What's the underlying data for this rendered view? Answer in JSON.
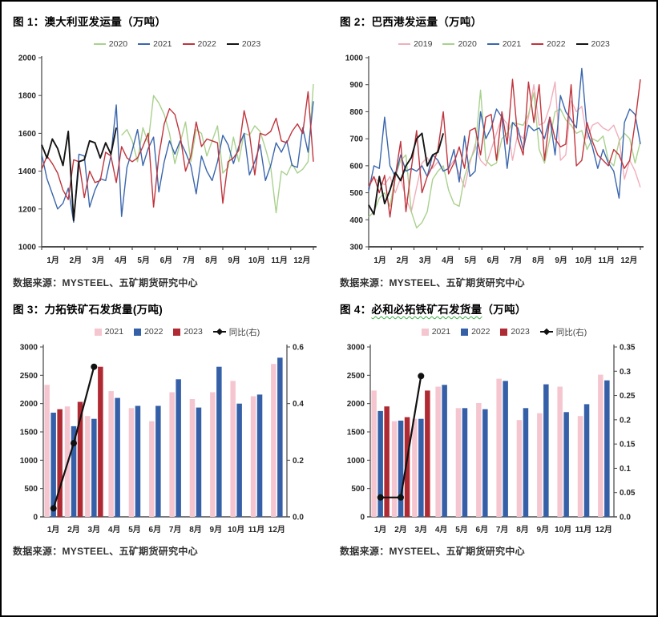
{
  "page": {
    "background": "#ffffff",
    "frame_border": "#000000"
  },
  "source_label": "数据来源：MYSTEEL、五矿期货研究中心",
  "palette": {
    "pink_line": "#f0aeba",
    "green_line": "#a9d18e",
    "blue_line": "#3a66ad",
    "red_line": "#c0343c",
    "black_line": "#141414",
    "pink_bar": "#f5c6d0",
    "blue_bar": "#3560a8",
    "dark_red_bar": "#b02a33",
    "yoy_line": "#111111"
  },
  "chart_data": [
    {
      "type": "line",
      "title": "图 1：澳大利亚发运量（万吨）",
      "source": "数据来源：MYSTEEL、五矿期货研究中心",
      "ylim": [
        1000,
        2000
      ],
      "yticks": [
        1000,
        1200,
        1400,
        1600,
        1800,
        2000
      ],
      "x_months": [
        "1月",
        "2月",
        "3月",
        "4月",
        "5月",
        "6月",
        "7月",
        "8月",
        "9月",
        "10月",
        "11月",
        "12月"
      ],
      "total_weeks": 52,
      "series": [
        {
          "name": "2020",
          "color": "#a9d18e",
          "start": 15,
          "values": [
            1590,
            1620,
            1560,
            1450,
            1630,
            1550,
            1800,
            1760,
            1700,
            1600,
            1440,
            1550,
            1660,
            1450,
            1620,
            1600,
            1480,
            1560,
            1640,
            1390,
            1420,
            1580,
            1450,
            1600,
            1590,
            1640,
            1610,
            1520,
            1420,
            1180,
            1400,
            1380,
            1440,
            1390,
            1410,
            1450,
            1860
          ]
        },
        {
          "name": "2021",
          "color": "#3a66ad",
          "start": 0,
          "values": [
            1490,
            1360,
            1280,
            1200,
            1230,
            1310,
            1130,
            1490,
            1480,
            1210,
            1300,
            1360,
            1350,
            1480,
            1750,
            1160,
            1420,
            1510,
            1620,
            1430,
            1520,
            1580,
            1290,
            1450,
            1560,
            1490,
            1560,
            1500,
            1430,
            1280,
            1480,
            1400,
            1350,
            1450,
            1590,
            1540,
            1440,
            1530,
            1600,
            1380,
            1450,
            1540,
            1350,
            1430,
            1550,
            1500,
            1560,
            1430,
            1420,
            1630,
            1500,
            1770
          ]
        },
        {
          "name": "2022",
          "color": "#c0343c",
          "start": 0,
          "values": [
            1410,
            1480,
            1440,
            1390,
            1300,
            1250,
            1460,
            1450,
            1260,
            1400,
            1340,
            1350,
            1500,
            1480,
            1340,
            1530,
            1470,
            1450,
            1470,
            1530,
            1600,
            1210,
            1480,
            1650,
            1730,
            1700,
            1590,
            1400,
            1480,
            1660,
            1530,
            1570,
            1560,
            1550,
            1230,
            1450,
            1470,
            1510,
            1720,
            1600,
            1380,
            1600,
            1590,
            1610,
            1680,
            1560,
            1550,
            1610,
            1650,
            1600,
            1820,
            1450
          ]
        },
        {
          "name": "2023",
          "color": "#141414",
          "start": 0,
          "values": [
            1540,
            1470,
            1570,
            1520,
            1430,
            1610,
            1140,
            1450,
            1460,
            1560,
            1550,
            1470,
            1550,
            1490,
            1630
          ]
        }
      ]
    },
    {
      "type": "line",
      "title": "图 2：巴西港发运量（万吨）",
      "source": "数据来源：MYSTEEL、五矿期货研究中心",
      "ylim": [
        300,
        1000
      ],
      "yticks": [
        300,
        400,
        500,
        600,
        700,
        800,
        900,
        1000
      ],
      "x_months": [
        "1月",
        "2月",
        "3月",
        "4月",
        "5月",
        "6月",
        "7月",
        "8月",
        "9月",
        "10月",
        "11月",
        "12月"
      ],
      "total_weeks": 52,
      "series": [
        {
          "name": "2019",
          "color": "#f0aeba",
          "start": 0,
          "values": [
            520,
            555,
            540,
            530,
            560,
            500,
            555,
            480,
            430,
            520,
            610,
            630,
            590,
            615,
            580,
            590,
            620,
            570,
            520,
            610,
            680,
            620,
            600,
            660,
            720,
            780,
            755,
            620,
            720,
            700,
            780,
            900,
            750,
            760,
            820,
            910,
            620,
            640,
            840,
            800,
            820,
            700,
            750,
            760,
            740,
            730,
            750,
            700,
            550,
            620,
            580,
            520
          ]
        },
        {
          "name": "2020",
          "color": "#a9d18e",
          "start": 0,
          "values": [
            410,
            430,
            480,
            500,
            450,
            560,
            620,
            640,
            430,
            370,
            390,
            430,
            550,
            580,
            600,
            510,
            460,
            450,
            560,
            620,
            660,
            880,
            620,
            600,
            610,
            700,
            720,
            760,
            755,
            750,
            790,
            870,
            660,
            610,
            700,
            800,
            810,
            770,
            750,
            720,
            730,
            660,
            700,
            690,
            710,
            620,
            600,
            690,
            720,
            700,
            610,
            690
          ]
        },
        {
          "name": "2021",
          "color": "#3a66ad",
          "start": 0,
          "values": [
            505,
            600,
            590,
            780,
            600,
            560,
            640,
            580,
            590,
            580,
            600,
            560,
            640,
            620,
            580,
            590,
            660,
            540,
            710,
            560,
            580,
            800,
            700,
            740,
            810,
            780,
            590,
            760,
            740,
            660,
            750,
            730,
            740,
            700,
            780,
            640,
            860,
            800,
            770,
            740,
            960,
            730,
            670,
            590,
            660,
            610,
            580,
            480,
            760,
            810,
            790,
            680
          ]
        },
        {
          "name": "2022",
          "color": "#c0343c",
          "start": 0,
          "values": [
            525,
            560,
            500,
            565,
            410,
            560,
            690,
            430,
            590,
            730,
            500,
            560,
            600,
            660,
            800,
            570,
            610,
            670,
            590,
            730,
            740,
            640,
            780,
            790,
            620,
            800,
            680,
            920,
            700,
            640,
            910,
            760,
            900,
            620,
            780,
            700,
            670,
            680,
            900,
            600,
            620,
            760,
            690,
            640,
            620,
            600,
            660,
            640,
            590,
            620,
            760,
            920
          ]
        },
        {
          "name": "2023",
          "color": "#141414",
          "start": 0,
          "values": [
            455,
            420,
            560,
            460,
            510,
            575,
            545,
            600,
            630,
            700,
            720,
            600,
            640,
            650,
            720
          ]
        }
      ]
    },
    {
      "type": "bar",
      "title": "图 3：力拓铁矿石发货量(万吨)",
      "source": "数据来源：MYSTEEL、五矿期货研究中心",
      "ylim": [
        0,
        3000
      ],
      "yticks": [
        0,
        500,
        1000,
        1500,
        2000,
        2500,
        3000
      ],
      "right_ylim": [
        0,
        0.6
      ],
      "right_ytick_labels": [
        "0.0",
        "0.2",
        "0.4",
        "0.6"
      ],
      "right_yticks": [
        0,
        0.2,
        0.4,
        0.6
      ],
      "x_months": [
        "1月",
        "2月",
        "3月",
        "4月",
        "5月",
        "6月",
        "7月",
        "8月",
        "9月",
        "10月",
        "11月",
        "12月"
      ],
      "series": [
        {
          "name": "2021",
          "color": "#f5c6d0",
          "values": [
            2330,
            1950,
            1780,
            2220,
            1920,
            1690,
            2200,
            2080,
            2200,
            2400,
            2130,
            2700
          ]
        },
        {
          "name": "2022",
          "color": "#3560a8",
          "values": [
            1840,
            1600,
            1730,
            2100,
            1960,
            1960,
            2430,
            1930,
            2650,
            2000,
            2160,
            2810
          ]
        },
        {
          "name": "2023",
          "color": "#b02a33",
          "values": [
            1900,
            2030,
            2650,
            null,
            null,
            null,
            null,
            null,
            null,
            null,
            null,
            null
          ]
        }
      ],
      "line_series": {
        "name": "同比(右)",
        "color": "#111111",
        "values": [
          0.03,
          0.26,
          0.53,
          null,
          null,
          null,
          null,
          null,
          null,
          null,
          null,
          null
        ]
      }
    },
    {
      "type": "bar",
      "title": "图 4：必和必拓铁矿石发货量（万吨）",
      "title_parts": {
        "prefix": "图 4：",
        "underlined": "必和必拓铁矿石发货量",
        "suffix": "（万吨）"
      },
      "source": "数据来源：MYSTEEL、五矿期货研究中心",
      "ylim": [
        0,
        3000
      ],
      "yticks": [
        0,
        500,
        1000,
        1500,
        2000,
        2500,
        3000
      ],
      "right_ylim": [
        0,
        0.35
      ],
      "right_ytick_labels": [
        "0.0",
        "0.05",
        "0.1",
        "0.15",
        "0.2",
        "0.25",
        "0.3",
        "0.35"
      ],
      "right_yticks": [
        0,
        0.05,
        0.1,
        0.15,
        0.2,
        0.25,
        0.3,
        0.35
      ],
      "x_months": [
        "1月",
        "2月",
        "3月",
        "4月",
        "5月",
        "6月",
        "7月",
        "8月",
        "9月",
        "10月",
        "11月",
        "12月"
      ],
      "series": [
        {
          "name": "2021",
          "color": "#f5c6d0",
          "values": [
            2230,
            1690,
            1730,
            2300,
            1920,
            2010,
            2440,
            1710,
            1830,
            2300,
            1780,
            2510
          ]
        },
        {
          "name": "2022",
          "color": "#3560a8",
          "values": [
            1870,
            1700,
            1730,
            2330,
            1920,
            1900,
            2400,
            1920,
            2340,
            1850,
            1990,
            2410
          ]
        },
        {
          "name": "2023",
          "color": "#b02a33",
          "values": [
            1950,
            1760,
            2230,
            null,
            null,
            null,
            null,
            null,
            null,
            null,
            null,
            null
          ]
        }
      ],
      "line_series": {
        "name": "同比(右)",
        "color": "#111111",
        "values": [
          0.04,
          0.04,
          0.29,
          null,
          null,
          null,
          null,
          null,
          null,
          null,
          null,
          null
        ]
      }
    }
  ]
}
